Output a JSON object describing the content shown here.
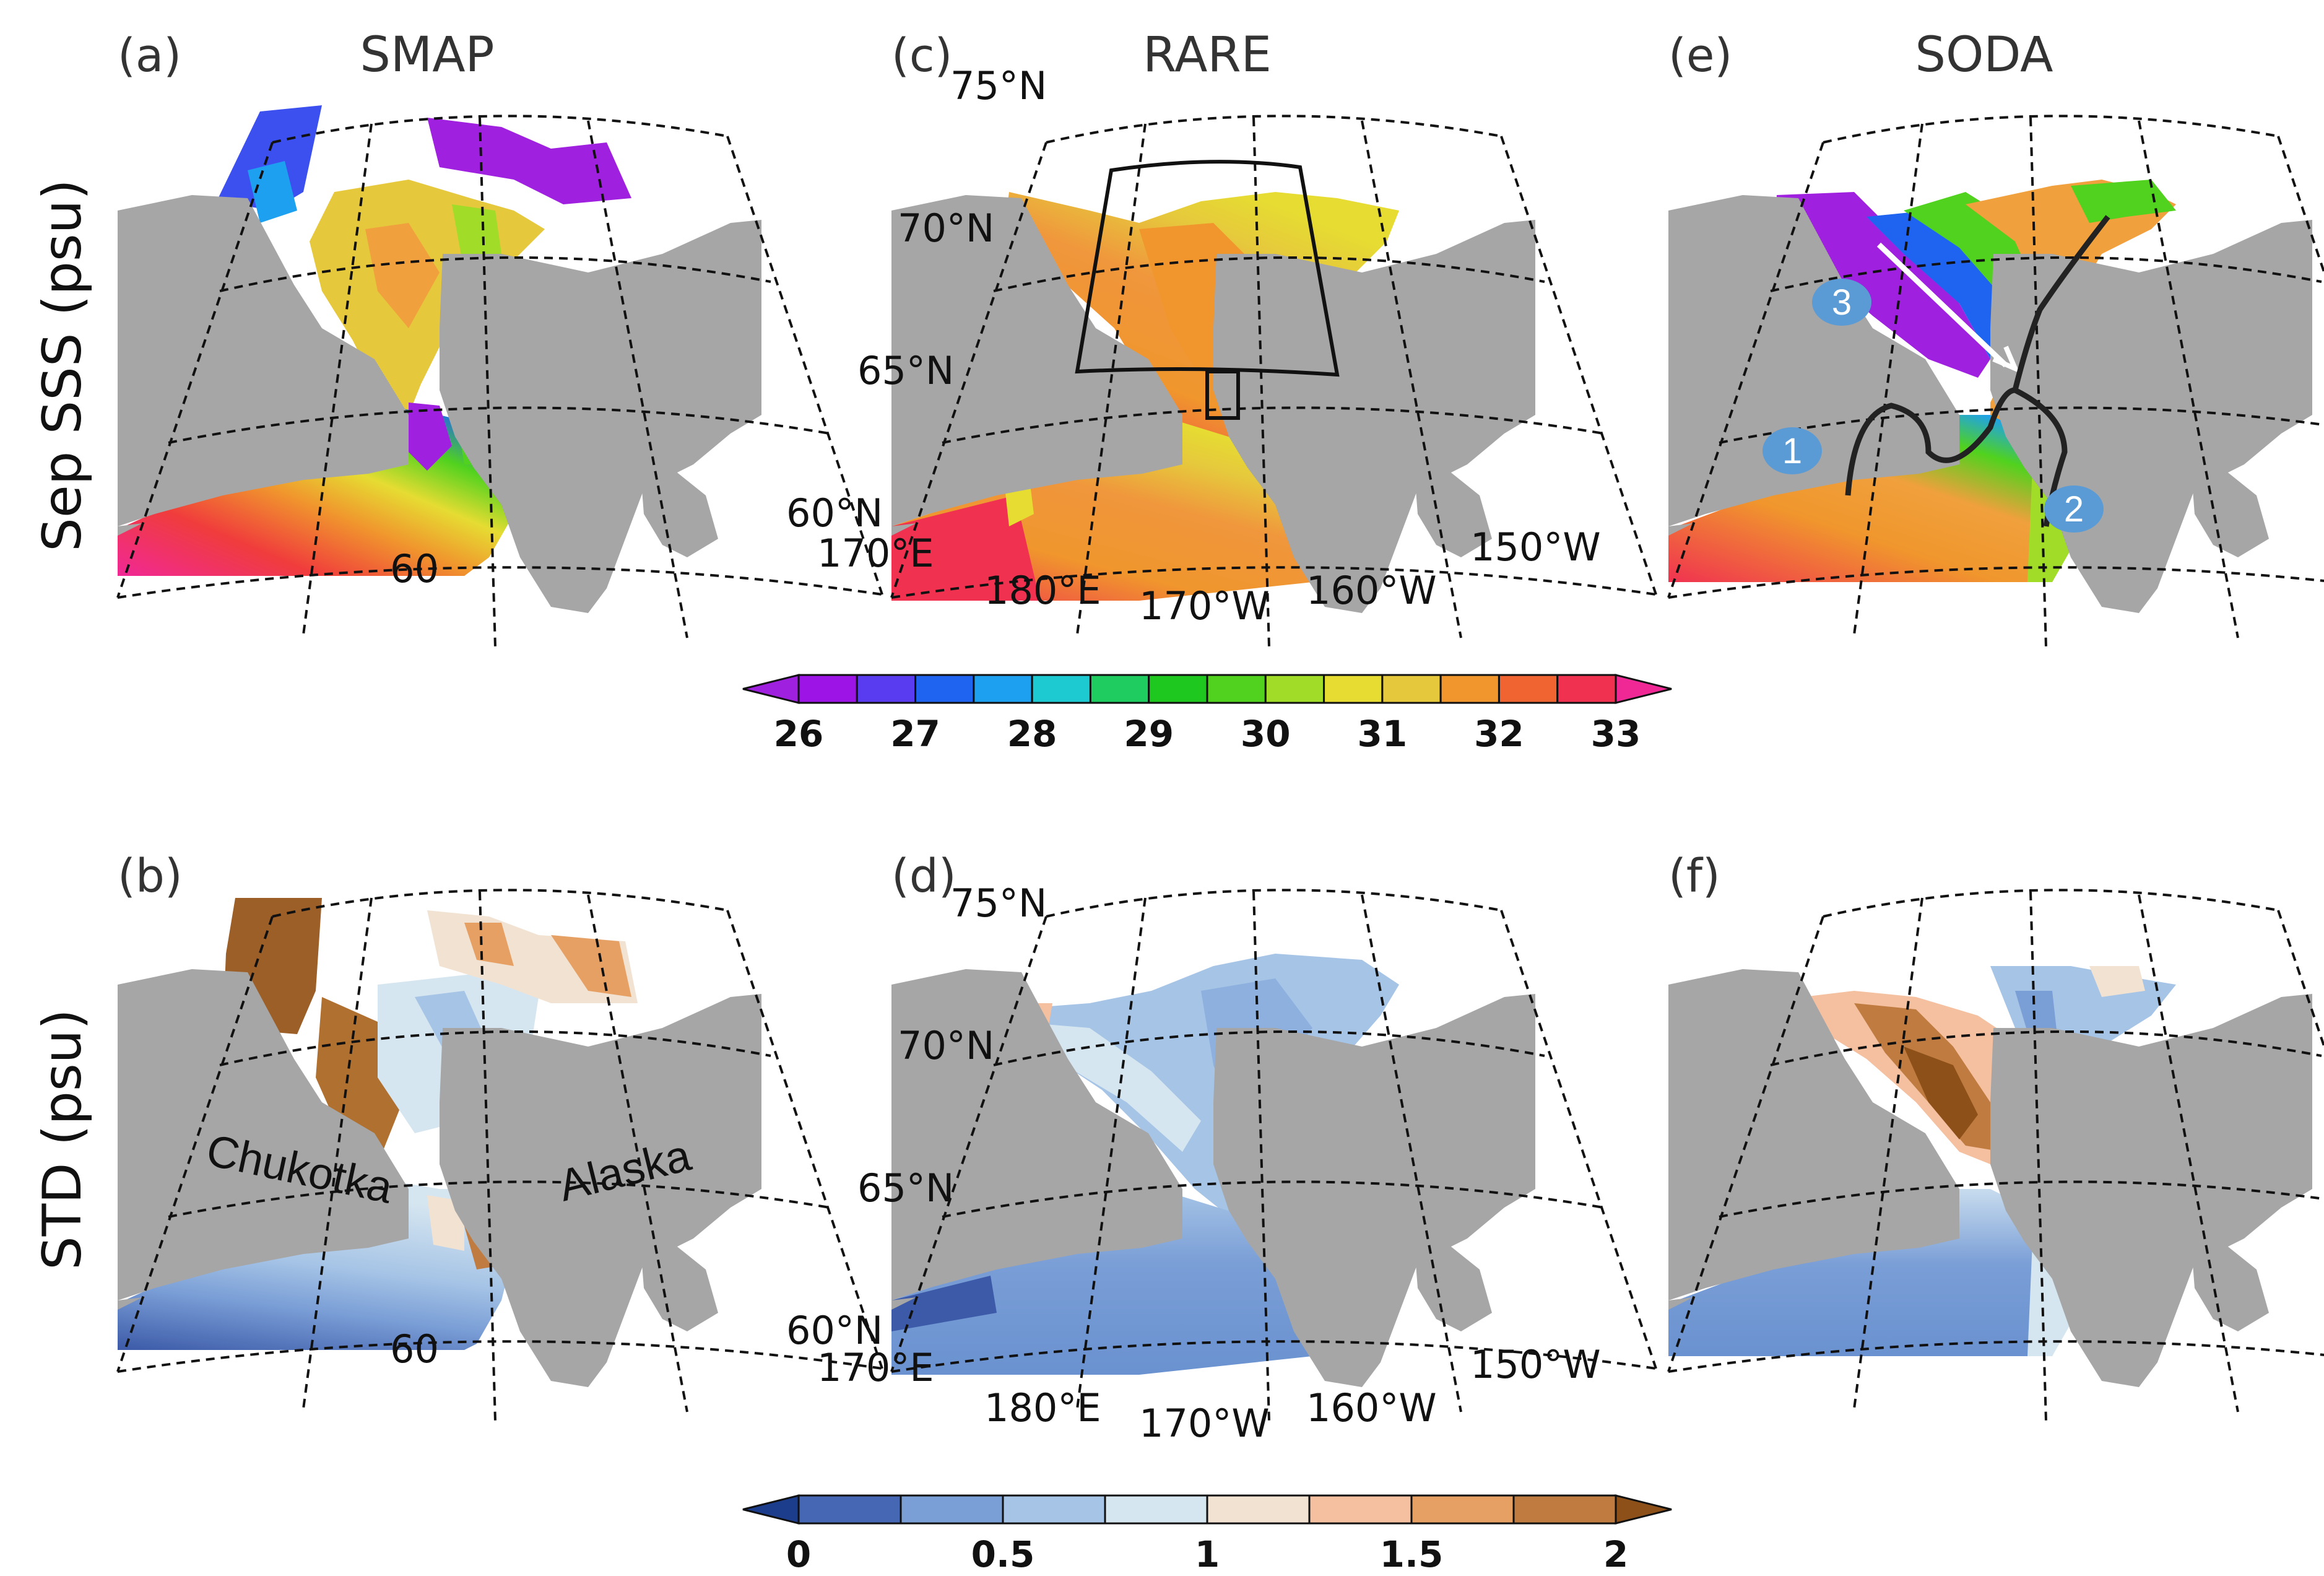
{
  "rows": [
    {
      "label": "Sep SSS (psu)"
    },
    {
      "label": "STD (psu)"
    }
  ],
  "panels": [
    {
      "id": "a",
      "label": "(a)",
      "title": "SMAP"
    },
    {
      "id": "c",
      "label": "(c)",
      "title": "RARE"
    },
    {
      "id": "e",
      "label": "(e)",
      "title": "SODA"
    },
    {
      "id": "b",
      "label": "(b)",
      "title": ""
    },
    {
      "id": "d",
      "label": "(d)",
      "title": ""
    },
    {
      "id": "f",
      "label": "(f)",
      "title": ""
    }
  ],
  "lat_labels": [
    "75°N",
    "70°N",
    "65°N",
    "60°N"
  ],
  "lon_labels": [
    "170°E",
    "180°E",
    "170°W",
    "160°W",
    "150°W"
  ],
  "cut_label": "60",
  "regions": {
    "chukotka": "Chukotka",
    "alaska": "Alaska"
  },
  "markers": [
    "1",
    "2",
    "3"
  ],
  "colorbars": [
    {
      "name": "sss",
      "ticks": [
        "26",
        "27",
        "28",
        "29",
        "30",
        "31",
        "32",
        "33"
      ],
      "colors": [
        "#a020e0",
        "#9c14e6",
        "#5a3cf0",
        "#1e64f0",
        "#1ea0f0",
        "#1ecad2",
        "#1ecc60",
        "#1ec81e",
        "#50d21e",
        "#a0dc28",
        "#e6dc32",
        "#e6c83c",
        "#f0962d",
        "#f06432",
        "#f03250",
        "#f02896"
      ]
    },
    {
      "name": "std",
      "ticks": [
        "0",
        "0.5",
        "1",
        "1.5",
        "2"
      ],
      "colors": [
        "#1c3c8c",
        "#4668b4",
        "#7a9ed6",
        "#a6c4e6",
        "#d6e6f0",
        "#f2e2d2",
        "#f4c0a0",
        "#e6a064",
        "#c07c40",
        "#8c5018"
      ]
    }
  ]
}
